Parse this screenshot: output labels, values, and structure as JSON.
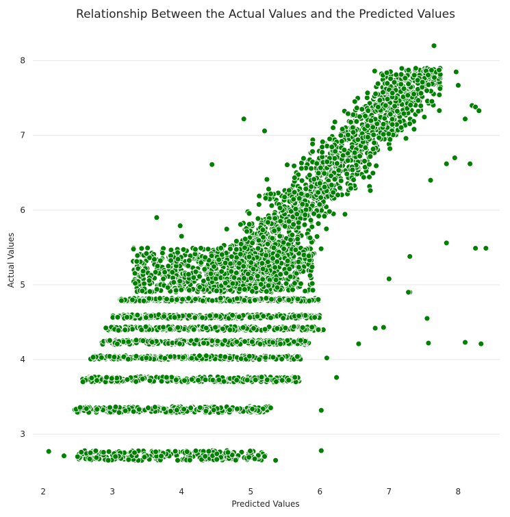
{
  "chart_data": {
    "type": "scatter",
    "title": "Relationship Between the Actual Values and the Predicted Values",
    "xlabel": "Predicted Values",
    "ylabel": "Actual Values",
    "xlim": [
      1.85,
      8.6
    ],
    "ylim": [
      2.35,
      8.4
    ],
    "xticks": [
      2,
      3,
      4,
      5,
      6,
      7,
      8
    ],
    "yticks": [
      3,
      4,
      5,
      6,
      7,
      8
    ],
    "grid": "horizontal",
    "point_color": "#008000",
    "band_levels": [
      2.7,
      3.3,
      3.7,
      4.0,
      4.2,
      4.4,
      4.6,
      4.8
    ],
    "outliers": [
      [
        2.08,
        2.77
      ],
      [
        2.3,
        2.71
      ],
      [
        5.36,
        2.65
      ],
      [
        6.02,
        2.78
      ],
      [
        6.02,
        3.32
      ],
      [
        6.1,
        4.02
      ],
      [
        6.24,
        3.76
      ],
      [
        7.57,
        4.22
      ],
      [
        8.1,
        4.23
      ],
      [
        8.33,
        4.21
      ],
      [
        7.55,
        4.55
      ],
      [
        6.56,
        4.21
      ],
      [
        6.8,
        4.42
      ],
      [
        7.3,
        4.9
      ],
      [
        7.0,
        5.08
      ],
      [
        7.83,
        5.56
      ],
      [
        8.25,
        5.49
      ],
      [
        8.4,
        5.49
      ],
      [
        8.2,
        7.4
      ],
      [
        8.25,
        7.38
      ],
      [
        8.3,
        7.33
      ],
      [
        8.1,
        7.22
      ],
      [
        7.97,
        7.85
      ],
      [
        8.0,
        7.67
      ],
      [
        7.65,
        8.2
      ],
      [
        4.9,
        7.22
      ],
      [
        5.2,
        7.06
      ],
      [
        4.44,
        6.61
      ],
      [
        3.64,
        5.9
      ],
      [
        3.98,
        5.79
      ],
      [
        4.0,
        5.65
      ],
      [
        8.17,
        6.62
      ],
      [
        7.95,
        6.7
      ],
      [
        7.83,
        6.62
      ],
      [
        7.6,
        6.4
      ],
      [
        7.28,
        4.9
      ],
      [
        7.3,
        5.38
      ],
      [
        6.92,
        4.43
      ]
    ]
  }
}
